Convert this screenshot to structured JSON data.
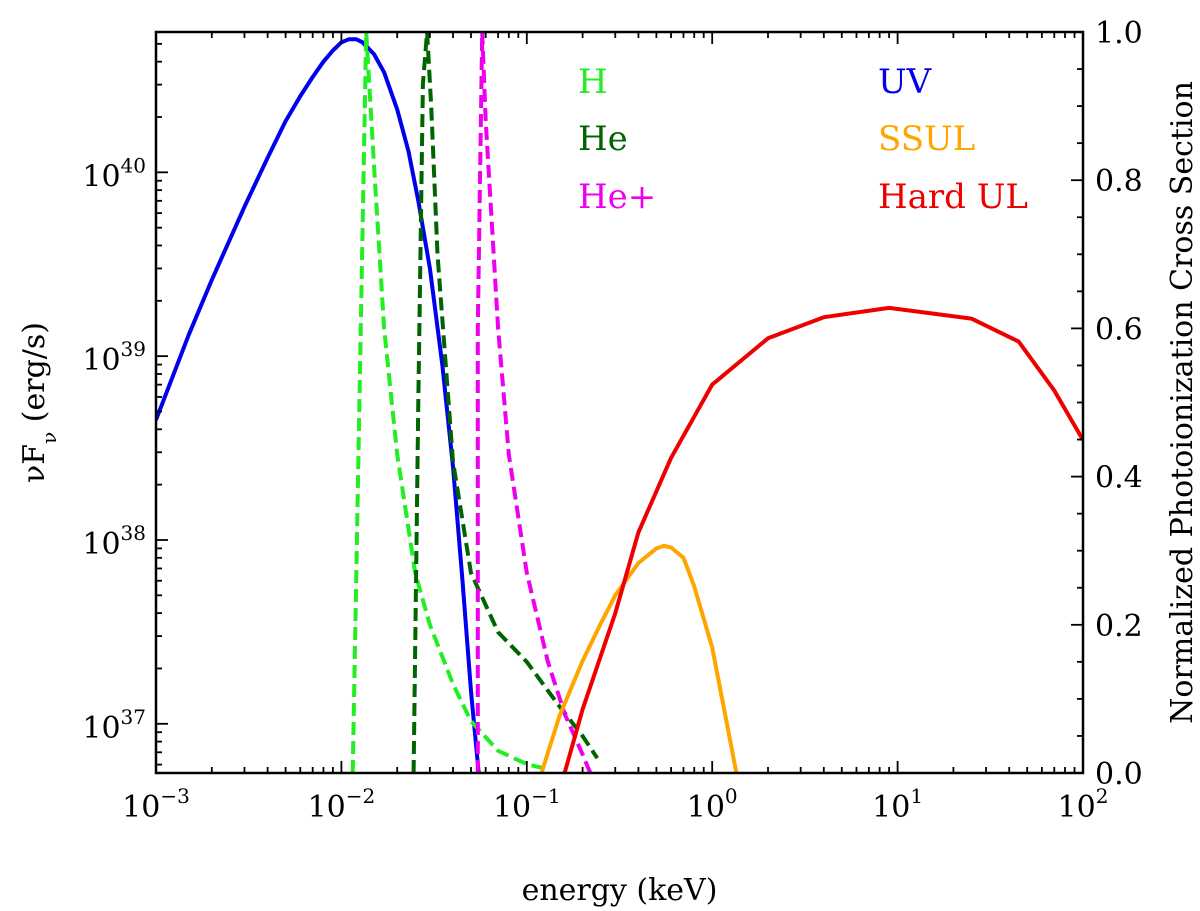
{
  "chart_data": {
    "type": "line",
    "xlabel": "energy (keV)",
    "ylabel_left": "νFν (erg/s)",
    "ylabel_left_parts": {
      "base": "νF",
      "sub": "ν",
      "rest": " (erg/s)"
    },
    "ylabel_right": "Normalized Photoionization Cross Section",
    "x_scale": "log",
    "xlim": [
      0.001,
      100
    ],
    "y_left_scale": "log",
    "y_left_lim": [
      5.4e+36,
      5.8e+40
    ],
    "y_right_lim": [
      0.0,
      1.0
    ],
    "x_ticks": [
      {
        "value": 0.001,
        "base": "10",
        "exp": "−3"
      },
      {
        "value": 0.01,
        "base": "10",
        "exp": "−2"
      },
      {
        "value": 0.1,
        "base": "10",
        "exp": "−1"
      },
      {
        "value": 1,
        "base": "10",
        "exp": "0"
      },
      {
        "value": 10,
        "base": "10",
        "exp": "1"
      },
      {
        "value": 100,
        "base": "10",
        "exp": "2"
      }
    ],
    "y_left_ticks": [
      {
        "value": 1e+37,
        "base": "10",
        "exp": "37"
      },
      {
        "value": 1e+38,
        "base": "10",
        "exp": "38"
      },
      {
        "value": 1e+39,
        "base": "10",
        "exp": "39"
      },
      {
        "value": 1e+40,
        "base": "10",
        "exp": "40"
      }
    ],
    "y_right_ticks": [
      "0.0",
      "0.2",
      "0.4",
      "0.6",
      "0.8",
      "1.0"
    ],
    "series": [
      {
        "name": "UV",
        "axis": "left",
        "style": "solid",
        "color": "#0000ee",
        "points": [
          [
            0.001,
            4.5e+38
          ],
          [
            0.0015,
            1.3e+39
          ],
          [
            0.002,
            2.6e+39
          ],
          [
            0.003,
            6.5e+39
          ],
          [
            0.004,
            1.2e+40
          ],
          [
            0.005,
            1.9e+40
          ],
          [
            0.006,
            2.6e+40
          ],
          [
            0.007,
            3.3e+40
          ],
          [
            0.008,
            4e+40
          ],
          [
            0.009,
            4.6e+40
          ],
          [
            0.01,
            5.1e+40
          ],
          [
            0.011,
            5.3e+40
          ],
          [
            0.012,
            5.3e+40
          ],
          [
            0.013,
            5.1e+40
          ],
          [
            0.015,
            4.4e+40
          ],
          [
            0.017,
            3.5e+40
          ],
          [
            0.02,
            2.2e+40
          ],
          [
            0.023,
            1.3e+40
          ],
          [
            0.026,
            7e+39
          ],
          [
            0.03,
            3e+39
          ],
          [
            0.035,
            9e+38
          ],
          [
            0.04,
            2.5e+38
          ],
          [
            0.045,
            6e+37
          ],
          [
            0.05,
            1.5e+37
          ],
          [
            0.055,
            5.4e+36
          ]
        ]
      },
      {
        "name": "H",
        "axis": "right",
        "style": "dashed",
        "color": "#22ee22",
        "points": [
          [
            0.0115,
            0.0
          ],
          [
            0.0125,
            0.5
          ],
          [
            0.0136,
            1.0
          ],
          [
            0.015,
            0.82
          ],
          [
            0.017,
            0.6
          ],
          [
            0.02,
            0.43
          ],
          [
            0.025,
            0.27
          ],
          [
            0.03,
            0.2
          ],
          [
            0.04,
            0.12
          ],
          [
            0.05,
            0.07
          ],
          [
            0.07,
            0.03
          ],
          [
            0.1,
            0.012
          ],
          [
            0.13,
            0.005
          ]
        ]
      },
      {
        "name": "He",
        "axis": "right",
        "style": "dashed",
        "color": "#006400",
        "points": [
          [
            0.0245,
            0.0
          ],
          [
            0.026,
            0.5
          ],
          [
            0.0275,
            0.93
          ],
          [
            0.029,
            1.0
          ],
          [
            0.0305,
            0.9
          ],
          [
            0.033,
            0.7
          ],
          [
            0.04,
            0.42
          ],
          [
            0.05,
            0.27
          ],
          [
            0.07,
            0.19
          ],
          [
            0.1,
            0.15
          ],
          [
            0.15,
            0.09
          ],
          [
            0.2,
            0.05
          ],
          [
            0.24,
            0.02
          ]
        ]
      },
      {
        "name": "He+",
        "axis": "right",
        "style": "dashed",
        "color": "#ee00ee",
        "points": [
          [
            0.0544,
            0.0
          ],
          [
            0.0544,
            0.6
          ],
          [
            0.0575,
            1.0
          ],
          [
            0.06,
            0.88
          ],
          [
            0.07,
            0.6
          ],
          [
            0.08,
            0.43
          ],
          [
            0.1,
            0.27
          ],
          [
            0.13,
            0.15
          ],
          [
            0.16,
            0.08
          ],
          [
            0.2,
            0.025
          ],
          [
            0.22,
            0.0
          ]
        ]
      },
      {
        "name": "SSUL",
        "axis": "left",
        "style": "solid",
        "color": "#ffa500",
        "points": [
          [
            0.12,
            5.4e+36
          ],
          [
            0.15,
            1.1e+37
          ],
          [
            0.2,
            2.2e+37
          ],
          [
            0.25,
            3.5e+37
          ],
          [
            0.3,
            5e+37
          ],
          [
            0.4,
            7.5e+37
          ],
          [
            0.5,
            9e+37
          ],
          [
            0.55,
            9.3e+37
          ],
          [
            0.6,
            9.1e+37
          ],
          [
            0.7,
            8e+37
          ],
          [
            0.8,
            5.6e+37
          ],
          [
            1.0,
            2.6e+37
          ],
          [
            1.2,
            1e+37
          ],
          [
            1.35,
            5.4e+36
          ]
        ]
      },
      {
        "name": "Hard UL",
        "axis": "left",
        "style": "solid",
        "color": "#ee0000",
        "points": [
          [
            0.16,
            5.4e+36
          ],
          [
            0.2,
            1.2e+37
          ],
          [
            0.3,
            4e+37
          ],
          [
            0.4,
            1.1e+38
          ],
          [
            0.6,
            2.8e+38
          ],
          [
            1.0,
            7e+38
          ],
          [
            2.0,
            1.25e+39
          ],
          [
            4.0,
            1.63e+39
          ],
          [
            9.0,
            1.83e+39
          ],
          [
            25.0,
            1.6e+39
          ],
          [
            45.0,
            1.2e+39
          ],
          [
            70.0,
            6.5e+38
          ],
          [
            100.0,
            3.5e+38
          ]
        ]
      }
    ],
    "legend": [
      {
        "label": "H",
        "color": "#22ee22",
        "column": 0,
        "row": 0
      },
      {
        "label": "He",
        "color": "#006400",
        "column": 0,
        "row": 1
      },
      {
        "label": "He+",
        "color": "#ee00ee",
        "column": 0,
        "row": 2
      },
      {
        "label": "UV",
        "color": "#0000ee",
        "column": 1,
        "row": 0
      },
      {
        "label": "SSUL",
        "color": "#ffa500",
        "column": 1,
        "row": 1
      },
      {
        "label": "Hard UL",
        "color": "#ee0000",
        "column": 1,
        "row": 2
      }
    ]
  }
}
